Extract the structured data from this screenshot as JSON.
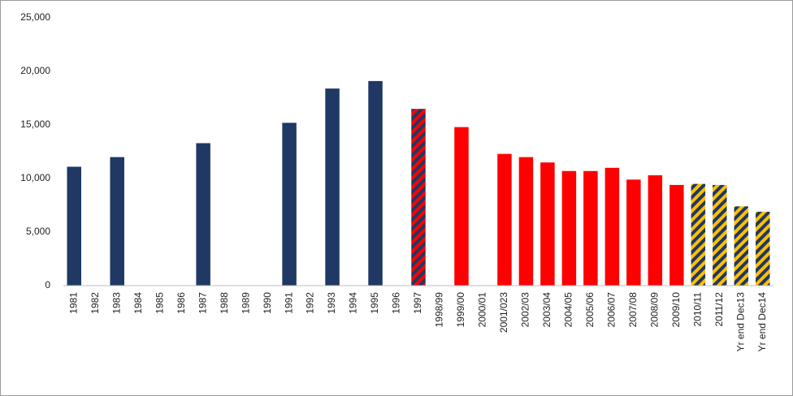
{
  "chart_data": {
    "type": "bar",
    "categories": [
      "1981",
      "1982",
      "1983",
      "1984",
      "1985",
      "1986",
      "1987",
      "1988",
      "1989",
      "1990",
      "1991",
      "1992",
      "1993",
      "1994",
      "1995",
      "1996",
      "1997",
      "1998/99",
      "1999/00",
      "2000/01",
      "2001/023",
      "2002/03",
      "2003/04",
      "2004/05",
      "2005/06",
      "2006/07",
      "2007/08",
      "2008/09",
      "2009/10",
      "2010/11",
      "2011/12",
      "Yr end Dec13",
      "Yr end Dec14"
    ],
    "values": [
      11100,
      null,
      12000,
      null,
      null,
      null,
      13300,
      null,
      null,
      null,
      15200,
      null,
      18400,
      null,
      19100,
      null,
      16500,
      null,
      14800,
      null,
      12300,
      12000,
      11500,
      10700,
      10700,
      11000,
      9900,
      10300,
      9400,
      9500,
      9400,
      7400,
      6900
    ],
    "colors": [
      "#1f3864",
      null,
      "#1f3864",
      null,
      null,
      null,
      "#1f3864",
      null,
      null,
      null,
      "#1f3864",
      null,
      "#1f3864",
      null,
      "#1f3864",
      null,
      "#1f3864",
      null,
      "#ff0000",
      null,
      "#ff0000",
      "#ff0000",
      "#ff0000",
      "#ff0000",
      "#ff0000",
      "#ff0000",
      "#ff0000",
      "#ff0000",
      "#ff0000",
      "#1f3864",
      "#1f3864",
      "#1f3864",
      "#1f3864"
    ],
    "hatch_colors": [
      null,
      null,
      null,
      null,
      null,
      null,
      null,
      null,
      null,
      null,
      null,
      null,
      null,
      null,
      null,
      null,
      "#ff0000",
      null,
      null,
      null,
      null,
      null,
      null,
      null,
      null,
      null,
      null,
      null,
      null,
      "#ffc000",
      "#ffc000",
      "#ffc000",
      "#ffc000"
    ],
    "ylim": [
      0,
      25000
    ],
    "yticks": [
      0,
      {
        "value": 5000,
        "label": "5,000"
      },
      {
        "value": 10000,
        "label": "10,000"
      },
      {
        "value": 15000,
        "label": "15,000"
      },
      {
        "value": 20000,
        "label": "20,000"
      },
      {
        "value": 25000,
        "label": "25,000"
      }
    ],
    "grid": false
  }
}
